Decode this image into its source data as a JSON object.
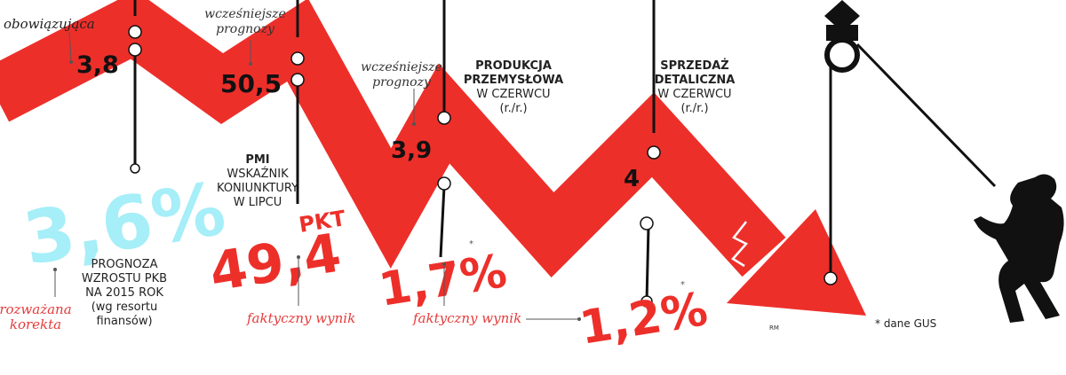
{
  "gdp": {
    "current_label": "obowiązująca",
    "current": "3,8",
    "forecast": "3,6%",
    "description": [
      "PROGNOZA",
      "WZROSTU PKB",
      "NA 2015 ROK",
      "(wg resortu",
      "finansów)"
    ],
    "forecast_label": [
      "rozważana",
      "korekta"
    ]
  },
  "pmi": {
    "earlier_label": [
      "wcześniejsze",
      "prognozy"
    ],
    "earlier": "50,5",
    "description": [
      "PMI",
      "WSKAŹNIK",
      "KONIUNKTURY",
      "W LIPCU"
    ],
    "actual": "49,4",
    "unit": "PKT",
    "actual_label": "faktyczny wynik"
  },
  "industry": {
    "earlier_label": [
      "wcześniejsze",
      "prognozy"
    ],
    "earlier": "3,9",
    "description": [
      "PRODUKCJA",
      "PRZEMYSŁOWA",
      "W CZERWCU",
      "(r./r.)"
    ],
    "actual": "1,7%",
    "actual_mark": "*",
    "actual_label": "faktyczny wynik"
  },
  "retail": {
    "description": [
      "SPRZEDAŻ",
      "DETALICZNA",
      "W CZERWCU",
      "(r./r.)"
    ],
    "earlier": "4",
    "actual": "1,2%",
    "actual_mark": "*"
  },
  "credit": "RM",
  "footnote": "* dane GUS"
}
